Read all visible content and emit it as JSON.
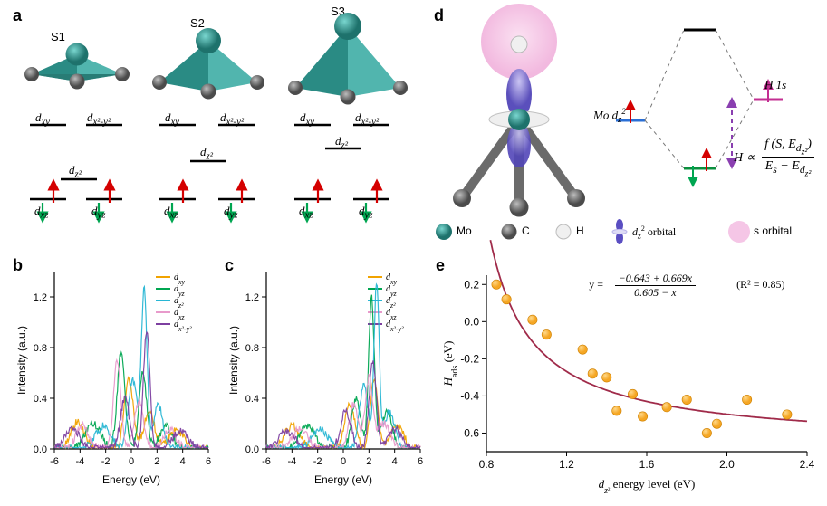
{
  "labels": {
    "a": "a",
    "b": "b",
    "c": "c",
    "d": "d",
    "e": "e"
  },
  "colors": {
    "mo": "#2f9e96",
    "c": "#6e6e6e",
    "h": "#e7e7e7",
    "face": "#2a8b84",
    "face_light": "#51b5ae",
    "stick": "#6b6b6b",
    "pink": "#f5c6e6",
    "blue_orb": "#6a5fcf",
    "white_ring": "#d5d5d5",
    "dash": "#777777",
    "red_arrow": "#d40000",
    "green_arrow": "#00a651",
    "blue_line": "#2a6fd6",
    "magenta": "#c32f92",
    "purple_dash": "#8a3fb0",
    "black": "#000000",
    "fit_color": "#a02b4a",
    "marker": "#f5a623",
    "marker_edge": "#ce8000",
    "axis": "#000000",
    "tick": "#000000"
  },
  "panel_a": {
    "sites": [
      "S1",
      "S2",
      "S3"
    ],
    "orbitals_top": [
      "d_xy",
      "d_x²-y²"
    ],
    "orbital_mid": "d_z²",
    "orbitals_bot": [
      "d_xz",
      "d_yz"
    ]
  },
  "panel_b": {
    "xlabel": "Energy (eV)",
    "ylabel": "Intensity (a.u.)",
    "xlim": [
      -6,
      6
    ],
    "xticks": [
      -6,
      -4,
      -2,
      0,
      2,
      4,
      6
    ],
    "ylim": [
      0,
      1.4
    ],
    "yticks": [
      0.0,
      0.4,
      0.8,
      1.2
    ],
    "series": {
      "d_xy": {
        "color": "#f1a300"
      },
      "d_yz": {
        "color": "#00a651"
      },
      "d_z2": {
        "color": "#28b6d4"
      },
      "d_xz": {
        "color": "#e89acb"
      },
      "d_x2y2": {
        "color": "#7d3fa0"
      }
    },
    "legend": [
      "d_xy",
      "d_yz",
      "d_z²",
      "d_xz",
      "d_x²-y²"
    ]
  },
  "panel_c": {
    "xlabel": "Energy (eV)",
    "ylabel": "Intensity (a.u.)",
    "xlim": [
      -6,
      6
    ],
    "xticks": [
      -6,
      -4,
      -2,
      0,
      2,
      4,
      6
    ],
    "ylim": [
      0,
      1.4
    ],
    "yticks": [
      0.0,
      0.4,
      0.8,
      1.2
    ],
    "series": {
      "d_xy": {
        "color": "#f1a300"
      },
      "d_yz": {
        "color": "#00a651"
      },
      "d_z2": {
        "color": "#28b6d4"
      },
      "d_xz": {
        "color": "#e89acb"
      },
      "d_x2y2": {
        "color": "#7d3fa0"
      }
    },
    "legend": [
      "d_xy",
      "d_yz",
      "d_z²",
      "d_xz",
      "d_x²-y²"
    ]
  },
  "panel_d": {
    "atom_legend": [
      "Mo",
      "C",
      "H"
    ],
    "orbital_legend": [
      "d_z² orbital",
      "s orbital"
    ],
    "mo_label": "Mo d_z²",
    "h_label": "H 1s",
    "eq_prefix": "H ∝",
    "eq_top": "f (S, E_dz²)",
    "eq_bot": "E_s − E_dz²"
  },
  "panel_e": {
    "xlabel": "d_z² energy level (eV)",
    "ylabel": "H_ads (eV)",
    "xlim": [
      0.8,
      2.4
    ],
    "xticks": [
      0.8,
      1.2,
      1.6,
      2.0,
      2.4
    ],
    "ylim": [
      -0.7,
      0.25
    ],
    "yticks": [
      -0.6,
      -0.4,
      -0.2,
      0.0,
      0.2
    ],
    "r2": "(R² = 0.85)",
    "eq_lhs": "y =",
    "eq_top": "−0.643 + 0.669x",
    "eq_bot": "0.605 − x",
    "fit_a": -0.643,
    "fit_b": 0.669,
    "fit_c": 0.605,
    "points": [
      [
        0.85,
        0.2
      ],
      [
        0.9,
        0.12
      ],
      [
        1.03,
        0.01
      ],
      [
        1.1,
        -0.07
      ],
      [
        1.28,
        -0.15
      ],
      [
        1.33,
        -0.28
      ],
      [
        1.4,
        -0.3
      ],
      [
        1.45,
        -0.48
      ],
      [
        1.53,
        -0.39
      ],
      [
        1.58,
        -0.51
      ],
      [
        1.7,
        -0.46
      ],
      [
        1.8,
        -0.42
      ],
      [
        1.9,
        -0.6
      ],
      [
        1.95,
        -0.55
      ],
      [
        2.1,
        -0.42
      ],
      [
        2.3,
        -0.5
      ]
    ]
  }
}
